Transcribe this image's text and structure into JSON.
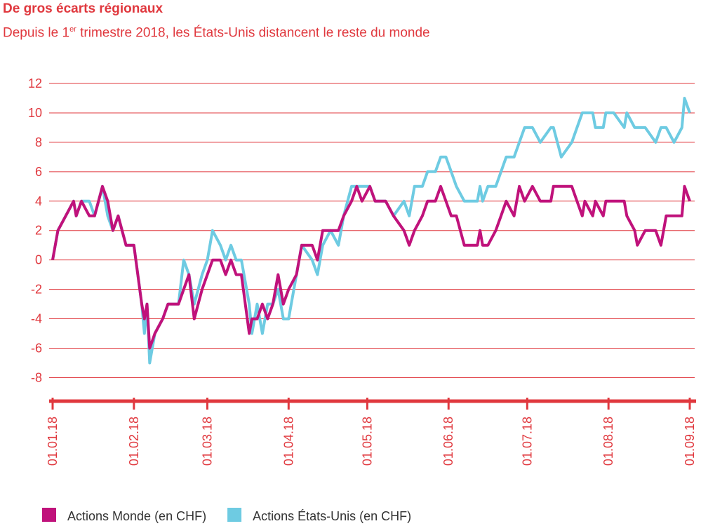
{
  "chart_data": {
    "type": "line",
    "title": "De gros écarts régionaux",
    "subtitle": [
      "Depuis le 1",
      "er",
      " trimestre 2018, les États-Unis distancent le reste du monde"
    ],
    "x": [
      "01.01.18",
      "03.01.18",
      "06.01.18",
      "09.01.18",
      "10.01.18",
      "12.01.18",
      "15.01.18",
      "17.01.18",
      "20.01.18",
      "22.01.18",
      "24.01.18",
      "26.01.18",
      "29.01.18",
      "01.02.18",
      "04.02.18",
      "05.02.18",
      "06.02.18",
      "07.02.18",
      "09.02.18",
      "12.02.18",
      "14.02.18",
      "18.02.18",
      "20.02.18",
      "22.02.18",
      "24.02.18",
      "27.02.18",
      "01.03.18",
      "03.03.18",
      "06.03.18",
      "08.03.18",
      "10.03.18",
      "12.03.18",
      "14.03.18",
      "17.03.18",
      "18.03.18",
      "20.03.18",
      "22.03.18",
      "24.03.18",
      "26.03.18",
      "28.03.18",
      "30.03.18",
      "01.04.18",
      "04.04.18",
      "06.04.18",
      "10.04.18",
      "12.04.18",
      "14.04.18",
      "17.04.18",
      "20.04.18",
      "22.04.18",
      "25.04.18",
      "27.04.18",
      "29.04.18",
      "02.05.18",
      "04.05.18",
      "08.05.18",
      "11.05.18",
      "15.05.18",
      "17.05.18",
      "19.05.18",
      "22.05.18",
      "24.05.18",
      "27.05.18",
      "29.05.18",
      "31.05.18",
      "02.06.18",
      "04.06.18",
      "07.06.18",
      "12.06.18",
      "13.06.18",
      "14.06.18",
      "16.06.18",
      "19.06.18",
      "21.06.18",
      "23.06.18",
      "26.06.18",
      "28.06.18",
      "30.06.18",
      "03.07.18",
      "06.07.18",
      "10.07.18",
      "11.07.18",
      "14.07.18",
      "18.07.18",
      "20.07.18",
      "22.07.18",
      "23.07.18",
      "26.07.18",
      "27.07.18",
      "30.07.18",
      "31.07.18",
      "03.08.18",
      "07.08.18",
      "08.08.18",
      "11.08.18",
      "12.08.18",
      "15.08.18",
      "19.08.18",
      "21.08.18",
      "23.08.18",
      "26.08.18",
      "29.08.18",
      "30.08.18",
      "01.09.18"
    ],
    "series": [
      {
        "name": "Actions Monde (en CHF)",
        "color": "#c0127b",
        "values": [
          0,
          2,
          3,
          4,
          3,
          4,
          3,
          3,
          5,
          4,
          2,
          3,
          1,
          1,
          -3,
          -4,
          -3,
          -6,
          -5,
          -4,
          -3,
          -3,
          -2,
          -1,
          -4,
          -2,
          -1,
          0,
          0,
          -1,
          0,
          -1,
          -1,
          -5,
          -4,
          -4,
          -3,
          -4,
          -3,
          -1,
          -3,
          -2,
          -1,
          1,
          1,
          0,
          2,
          2,
          2,
          3,
          4,
          5,
          4,
          5,
          4,
          4,
          3,
          2,
          1,
          2,
          3,
          4,
          4,
          5,
          4,
          3,
          3,
          1,
          1,
          2,
          1,
          1,
          2,
          3,
          4,
          3,
          5,
          4,
          5,
          4,
          4,
          5,
          5,
          5,
          4,
          3,
          4,
          3,
          4,
          3,
          4,
          4,
          4,
          3,
          2,
          1,
          2,
          2,
          1,
          3,
          3,
          3,
          5,
          4
        ]
      },
      {
        "name": "Actions États-Unis (en CHF)",
        "color": "#6ecbe2",
        "values": [
          0,
          2,
          3,
          4,
          3,
          4,
          4,
          3,
          5,
          3,
          2,
          3,
          1,
          1,
          -3,
          -5,
          -3,
          -7,
          -5,
          -4,
          -3,
          -3,
          0,
          -1,
          -3,
          -1,
          0,
          2,
          1,
          0,
          1,
          0,
          0,
          -3,
          -5,
          -3,
          -5,
          -3,
          -3,
          -2,
          -4,
          -4,
          -1,
          1,
          0,
          -1,
          1,
          2,
          1,
          3,
          5,
          5,
          5,
          5,
          4,
          4,
          3,
          4,
          3,
          5,
          5,
          6,
          6,
          7,
          7,
          6,
          5,
          4,
          4,
          5,
          4,
          5,
          5,
          6,
          7,
          7,
          8,
          9,
          9,
          8,
          9,
          9,
          7,
          8,
          9,
          10,
          10,
          10,
          9,
          9,
          10,
          10,
          9,
          10,
          9,
          9,
          9,
          8,
          9,
          9,
          8,
          9,
          11,
          10
        ]
      }
    ],
    "xlim": [
      "01.01.18",
      "01.09.18"
    ],
    "xticks": [
      "01.01.18",
      "01.02.18",
      "01.03.18",
      "01.04.18",
      "01.05.18",
      "01.06.18",
      "01.07.18",
      "01.08.18",
      "01.09.18"
    ],
    "ylim": [
      -9.6,
      12
    ],
    "yticks": [
      12,
      10,
      8,
      6,
      4,
      2,
      0,
      -2,
      -4,
      -6,
      -8
    ],
    "grid": true,
    "legend": "bottom-left"
  }
}
